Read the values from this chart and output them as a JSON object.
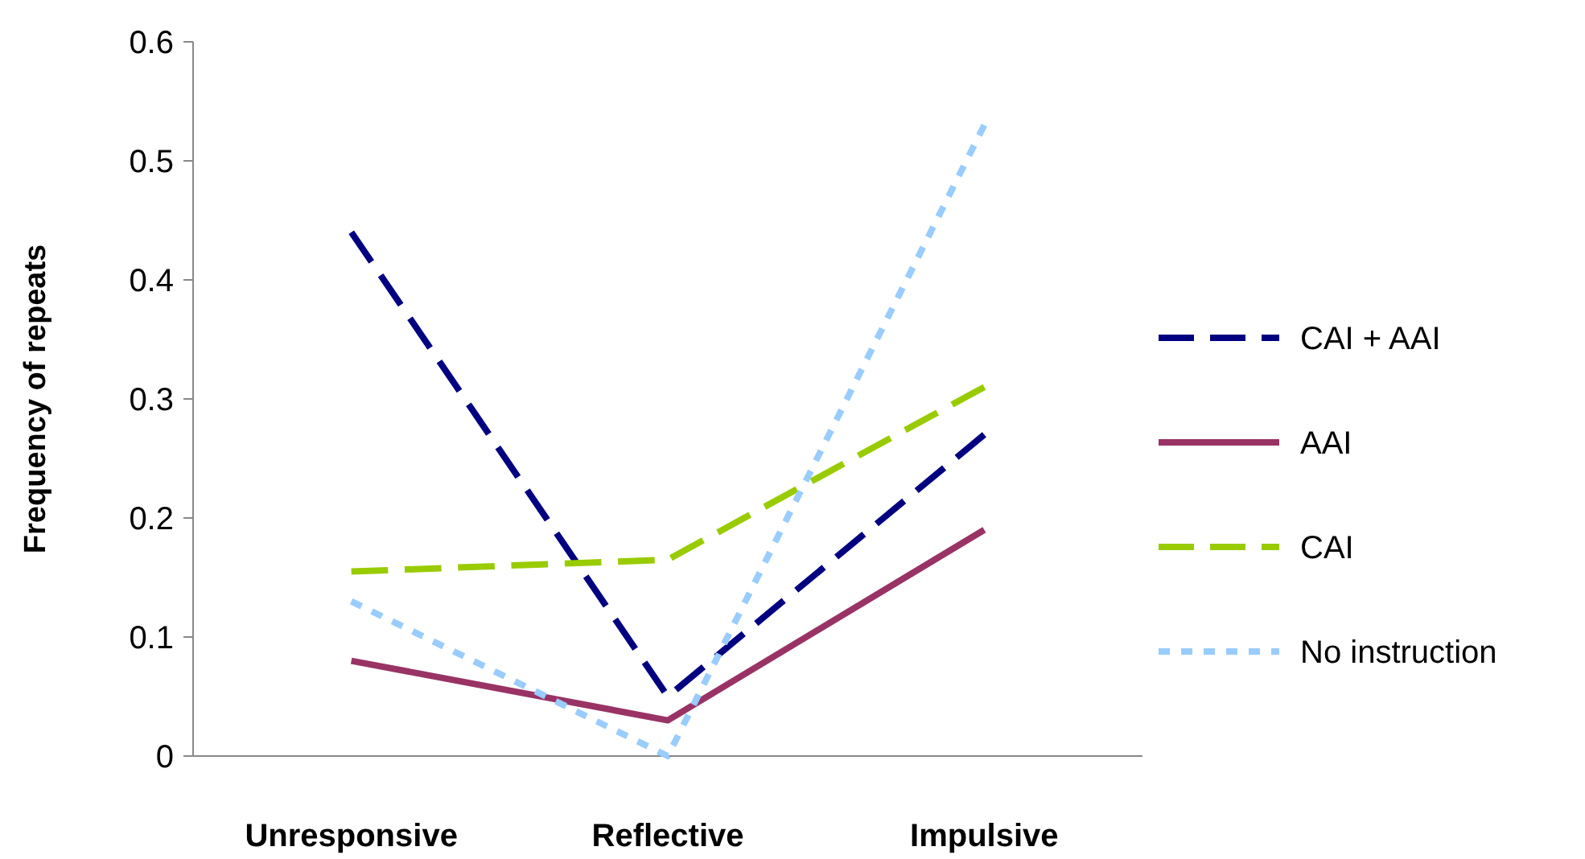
{
  "chart_data": {
    "type": "line",
    "ylabel": "Frequency of repeats",
    "categories": [
      "Unresponsive",
      "Reflective",
      "Impulsive"
    ],
    "series": [
      {
        "name": "CAI + AAI",
        "color": "#000080",
        "values": [
          0.44,
          0.05,
          0.27
        ],
        "line_style": "dashed"
      },
      {
        "name": "AAI",
        "color": "#993366",
        "values": [
          0.08,
          0.03,
          0.19
        ],
        "line_style": "solid"
      },
      {
        "name": "CAI",
        "color": "#99cc00",
        "values": [
          0.155,
          0.165,
          0.31
        ],
        "line_style": "dashed"
      },
      {
        "name": "No instruction",
        "color": "#99ccff",
        "values": [
          0.13,
          0.0,
          0.53
        ],
        "line_style": "dotted"
      }
    ],
    "ylim": [
      0,
      0.6
    ],
    "yticks": [
      0,
      0.1,
      0.2,
      0.3,
      0.4,
      0.5,
      0.6
    ],
    "grid": false,
    "legend": "right"
  }
}
